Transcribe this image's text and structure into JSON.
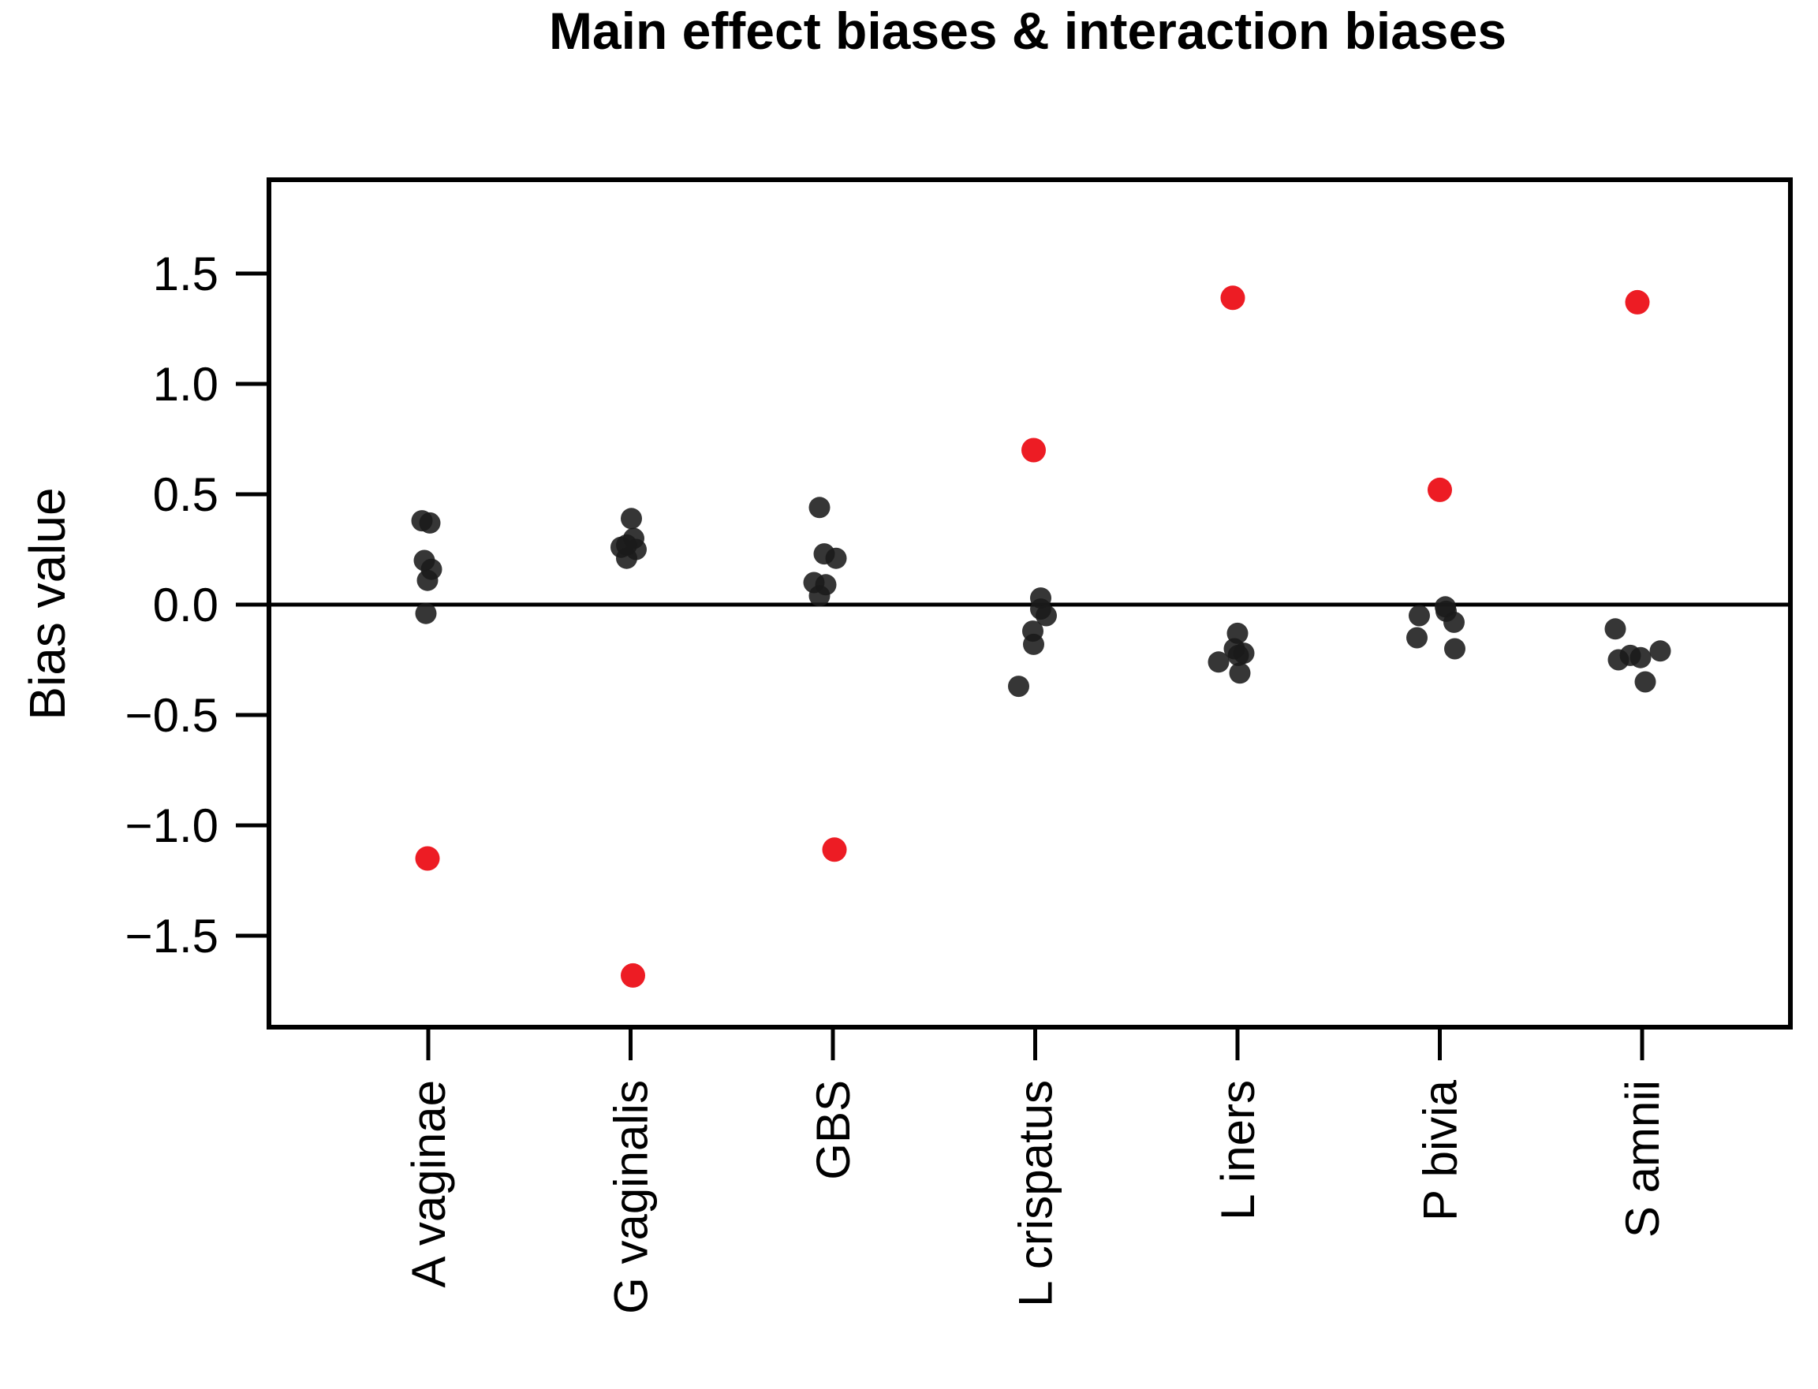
{
  "chart_data": {
    "type": "scatter",
    "subtype": "stripchart-jittered",
    "title": "Main effect biases & interaction biases",
    "xlabel": "",
    "ylabel": "Bias value",
    "ylim": [
      -1.92,
      1.93
    ],
    "grid": false,
    "legend": "none",
    "zero_line": 0.0,
    "colors": {
      "black_points": "#1a1a1a",
      "red_points": "#ed1c24",
      "axis": "#000000"
    },
    "y_ticks": [
      {
        "value": 1.5,
        "label": "1.5"
      },
      {
        "value": 1.0,
        "label": "1.0"
      },
      {
        "value": 0.5,
        "label": "0.5"
      },
      {
        "value": 0.0,
        "label": "0.0"
      },
      {
        "value": -0.5,
        "label": "−0.5"
      },
      {
        "value": -1.0,
        "label": "−1.0"
      },
      {
        "value": -1.5,
        "label": "−1.5"
      }
    ],
    "categories": [
      "A vaginae",
      "G vaginalis",
      "GBS",
      "L crispatus",
      "L iners",
      "P bivia",
      "S amnii"
    ],
    "series": [
      {
        "name": "main effect biases (black)",
        "color": "#1a1a1a",
        "marker": "dot",
        "marker_radius": 13.5
      },
      {
        "name": "interaction biases (red)",
        "color": "#ed1c24",
        "marker": "dot",
        "marker_radius": 15.5
      }
    ],
    "groups": [
      {
        "label": "A vaginae",
        "black": [
          {
            "v": 0.38,
            "dx": -8
          },
          {
            "v": 0.37,
            "dx": 2
          },
          {
            "v": 0.2,
            "dx": -5
          },
          {
            "v": 0.16,
            "dx": 4
          },
          {
            "v": 0.11,
            "dx": -1
          },
          {
            "v": -0.04,
            "dx": -3
          }
        ],
        "red": {
          "v": -1.15,
          "dx": -1
        }
      },
      {
        "label": "G vaginalis",
        "black": [
          {
            "v": 0.39,
            "dx": 1
          },
          {
            "v": 0.3,
            "dx": 4
          },
          {
            "v": 0.27,
            "dx": -5
          },
          {
            "v": 0.26,
            "dx": -12
          },
          {
            "v": 0.25,
            "dx": 7
          },
          {
            "v": 0.21,
            "dx": -5
          }
        ],
        "red": {
          "v": -1.68,
          "dx": 3
        }
      },
      {
        "label": "GBS",
        "black": [
          {
            "v": 0.44,
            "dx": -17
          },
          {
            "v": 0.23,
            "dx": -11
          },
          {
            "v": 0.21,
            "dx": 4
          },
          {
            "v": 0.1,
            "dx": -24
          },
          {
            "v": 0.09,
            "dx": -9
          },
          {
            "v": 0.04,
            "dx": -17
          }
        ],
        "red": {
          "v": -1.11,
          "dx": 2
        }
      },
      {
        "label": "L crispatus",
        "black": [
          {
            "v": 0.03,
            "dx": 7
          },
          {
            "v": -0.02,
            "dx": 7
          },
          {
            "v": -0.05,
            "dx": 14
          },
          {
            "v": -0.12,
            "dx": -3
          },
          {
            "v": -0.18,
            "dx": -2
          },
          {
            "v": -0.37,
            "dx": -21
          }
        ],
        "red": {
          "v": 0.7,
          "dx": -2
        }
      },
      {
        "label": "L iners",
        "black": [
          {
            "v": -0.13,
            "dx": 0
          },
          {
            "v": -0.2,
            "dx": -4
          },
          {
            "v": -0.22,
            "dx": 8
          },
          {
            "v": -0.23,
            "dx": 1
          },
          {
            "v": -0.26,
            "dx": -24
          },
          {
            "v": -0.31,
            "dx": 3
          }
        ],
        "red": {
          "v": 1.39,
          "dx": -6
        }
      },
      {
        "label": "P bivia",
        "black": [
          {
            "v": -0.01,
            "dx": 7
          },
          {
            "v": -0.03,
            "dx": 8
          },
          {
            "v": -0.05,
            "dx": -26
          },
          {
            "v": -0.08,
            "dx": 18
          },
          {
            "v": -0.15,
            "dx": -29
          },
          {
            "v": -0.2,
            "dx": 19
          }
        ],
        "red": {
          "v": 0.52,
          "dx": 0
        }
      },
      {
        "label": "S amnii",
        "black": [
          {
            "v": -0.11,
            "dx": -34
          },
          {
            "v": -0.21,
            "dx": 23
          },
          {
            "v": -0.23,
            "dx": -15
          },
          {
            "v": -0.24,
            "dx": -2
          },
          {
            "v": -0.25,
            "dx": -30
          },
          {
            "v": -0.35,
            "dx": 4
          }
        ],
        "red": {
          "v": 1.37,
          "dx": -6
        }
      }
    ]
  }
}
